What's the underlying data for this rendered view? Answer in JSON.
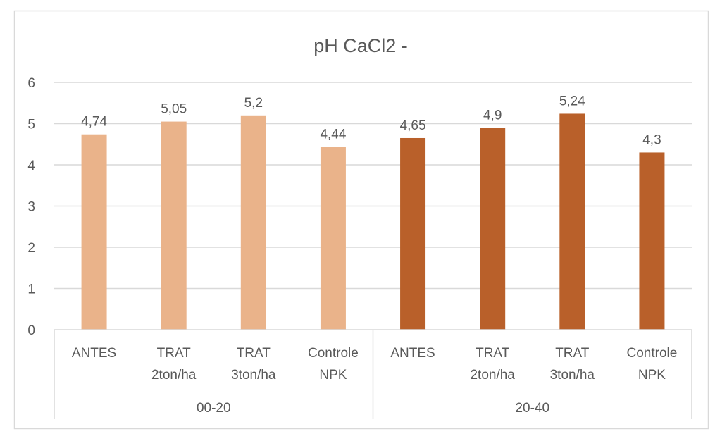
{
  "chart_data": {
    "type": "bar",
    "title": "pH CaCl2  -",
    "xlabel": "",
    "ylabel": "",
    "ylim": [
      0,
      6
    ],
    "yticks": [
      "0",
      "1",
      "2",
      "3",
      "4",
      "5",
      "6"
    ],
    "grid": true,
    "legend": "none",
    "groups": [
      {
        "name": "00-20",
        "color": "#EAB38A",
        "categories": [
          [
            "ANTES"
          ],
          [
            "TRAT",
            "2ton/ha"
          ],
          [
            "TRAT",
            "3ton/ha"
          ],
          [
            "Controle",
            "NPK"
          ]
        ],
        "values": [
          4.74,
          5.05,
          5.2,
          4.44
        ],
        "labels": [
          "4,74",
          "5,05",
          "5,2",
          "4,44"
        ]
      },
      {
        "name": "20-40",
        "color": "#B9602A",
        "categories": [
          [
            "ANTES"
          ],
          [
            "TRAT",
            "2ton/ha"
          ],
          [
            "TRAT",
            "3ton/ha"
          ],
          [
            "Controle",
            "NPK"
          ]
        ],
        "values": [
          4.65,
          4.9,
          5.24,
          4.3
        ],
        "labels": [
          "4,65",
          "4,9",
          "5,24",
          "4,3"
        ]
      }
    ]
  }
}
